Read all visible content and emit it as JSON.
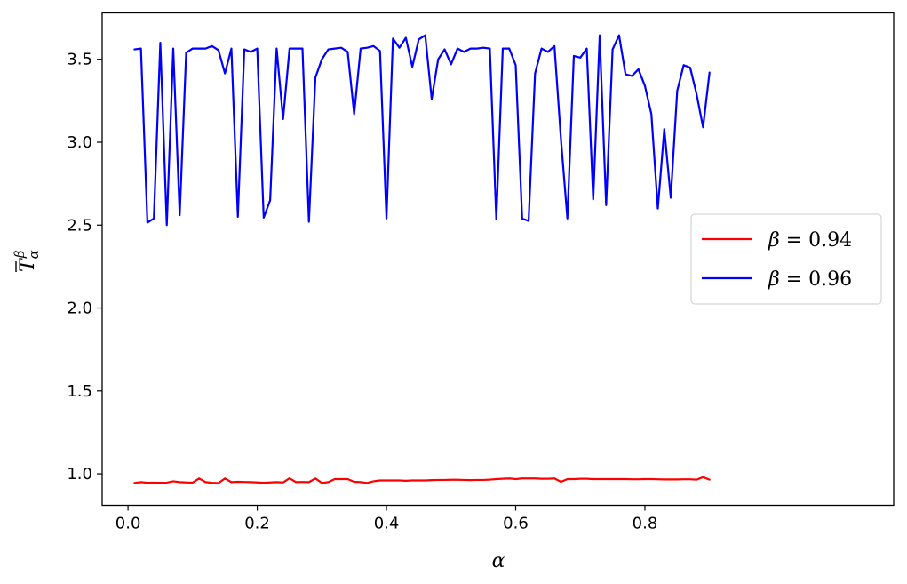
{
  "chart_data": {
    "type": "line",
    "xlabel": "α",
    "ylabel": "T̄αβ",
    "xlim": [
      -0.04,
      1.185
    ],
    "ylim": [
      0.81,
      3.78
    ],
    "x_ticks": [
      {
        "value": 0.0,
        "label": "0.0"
      },
      {
        "value": 0.2,
        "label": "0.2"
      },
      {
        "value": 0.4,
        "label": "0.4"
      },
      {
        "value": 0.6,
        "label": "0.6"
      },
      {
        "value": 0.8,
        "label": "0.8"
      }
    ],
    "y_ticks": [
      {
        "value": 1.0,
        "label": "1.0"
      },
      {
        "value": 1.5,
        "label": "1.5"
      },
      {
        "value": 2.0,
        "label": "2.0"
      },
      {
        "value": 2.5,
        "label": "2.5"
      },
      {
        "value": 3.0,
        "label": "3.0"
      },
      {
        "value": 3.5,
        "label": "3.5"
      }
    ],
    "grid": false,
    "legend_position": "center-right",
    "series": [
      {
        "name": "β = 0.94",
        "legend_symbol": "β",
        "legend_value": "0.94",
        "color": "#ff0000",
        "x": [
          0.01,
          0.02,
          0.03,
          0.04,
          0.05,
          0.06,
          0.07,
          0.08,
          0.09,
          0.1,
          0.11,
          0.12,
          0.13,
          0.14,
          0.15,
          0.16,
          0.17,
          0.18,
          0.19,
          0.2,
          0.21,
          0.22,
          0.23,
          0.24,
          0.25,
          0.26,
          0.27,
          0.28,
          0.29,
          0.3,
          0.31,
          0.32,
          0.33,
          0.34,
          0.35,
          0.36,
          0.37,
          0.38,
          0.39,
          0.4,
          0.41,
          0.42,
          0.43,
          0.44,
          0.45,
          0.46,
          0.47,
          0.48,
          0.49,
          0.5,
          0.51,
          0.52,
          0.53,
          0.54,
          0.55,
          0.56,
          0.57,
          0.58,
          0.59,
          0.6,
          0.61,
          0.62,
          0.63,
          0.64,
          0.65,
          0.66,
          0.67,
          0.68,
          0.69,
          0.7,
          0.71,
          0.72,
          0.73,
          0.74,
          0.75,
          0.76,
          0.77,
          0.78,
          0.79,
          0.8,
          0.81,
          0.82,
          0.83,
          0.84,
          0.85,
          0.86,
          0.87,
          0.88,
          0.89,
          0.9
        ],
        "y": [
          0.945,
          0.95,
          0.946,
          0.947,
          0.946,
          0.947,
          0.955,
          0.95,
          0.948,
          0.947,
          0.972,
          0.95,
          0.946,
          0.944,
          0.972,
          0.95,
          0.952,
          0.951,
          0.95,
          0.948,
          0.946,
          0.948,
          0.95,
          0.948,
          0.973,
          0.95,
          0.951,
          0.95,
          0.972,
          0.945,
          0.95,
          0.968,
          0.968,
          0.968,
          0.952,
          0.95,
          0.945,
          0.955,
          0.96,
          0.96,
          0.96,
          0.96,
          0.958,
          0.96,
          0.96,
          0.96,
          0.962,
          0.963,
          0.963,
          0.964,
          0.964,
          0.963,
          0.962,
          0.963,
          0.963,
          0.965,
          0.968,
          0.97,
          0.972,
          0.968,
          0.972,
          0.972,
          0.972,
          0.97,
          0.97,
          0.972,
          0.952,
          0.968,
          0.968,
          0.97,
          0.97,
          0.968,
          0.968,
          0.968,
          0.968,
          0.968,
          0.968,
          0.967,
          0.967,
          0.968,
          0.968,
          0.967,
          0.966,
          0.966,
          0.966,
          0.967,
          0.967,
          0.965,
          0.98,
          0.965
        ]
      },
      {
        "name": "β = 0.96",
        "legend_symbol": "β",
        "legend_value": "0.96",
        "color": "#0000ff",
        "x": [
          0.01,
          0.02,
          0.03,
          0.04,
          0.05,
          0.06,
          0.07,
          0.08,
          0.09,
          0.1,
          0.11,
          0.12,
          0.13,
          0.14,
          0.15,
          0.16,
          0.17,
          0.18,
          0.19,
          0.2,
          0.21,
          0.22,
          0.23,
          0.24,
          0.25,
          0.26,
          0.27,
          0.28,
          0.29,
          0.3,
          0.31,
          0.32,
          0.33,
          0.34,
          0.35,
          0.36,
          0.37,
          0.38,
          0.39,
          0.4,
          0.41,
          0.42,
          0.43,
          0.44,
          0.45,
          0.46,
          0.47,
          0.48,
          0.49,
          0.5,
          0.51,
          0.52,
          0.53,
          0.54,
          0.55,
          0.56,
          0.57,
          0.58,
          0.59,
          0.6,
          0.61,
          0.62,
          0.63,
          0.64,
          0.65,
          0.66,
          0.67,
          0.68,
          0.69,
          0.7,
          0.71,
          0.72,
          0.73,
          0.74,
          0.75,
          0.76,
          0.77,
          0.78,
          0.79,
          0.8,
          0.81,
          0.82,
          0.83,
          0.84,
          0.85,
          0.86,
          0.87,
          0.88,
          0.89,
          0.9
        ],
        "y": [
          3.56,
          3.565,
          2.515,
          2.54,
          3.6,
          2.5,
          3.565,
          2.56,
          3.54,
          3.565,
          3.565,
          3.565,
          3.58,
          3.555,
          3.415,
          3.565,
          2.55,
          3.56,
          3.545,
          3.565,
          2.545,
          2.65,
          3.565,
          3.14,
          3.565,
          3.565,
          3.565,
          2.52,
          3.39,
          3.5,
          3.56,
          3.565,
          3.57,
          3.545,
          3.17,
          3.565,
          3.57,
          3.58,
          3.55,
          2.54,
          3.625,
          3.57,
          3.63,
          3.455,
          3.62,
          3.645,
          3.26,
          3.5,
          3.56,
          3.47,
          3.565,
          3.545,
          3.565,
          3.565,
          3.57,
          3.565,
          2.535,
          3.565,
          3.565,
          3.465,
          2.54,
          2.525,
          3.415,
          3.565,
          3.545,
          3.58,
          3.02,
          2.54,
          3.52,
          3.51,
          3.565,
          2.655,
          3.645,
          2.62,
          3.56,
          3.645,
          3.41,
          3.4,
          3.44,
          3.34,
          3.17,
          2.6,
          3.08,
          2.665,
          3.31,
          3.465,
          3.45,
          3.29,
          3.09,
          3.42
        ]
      }
    ]
  }
}
